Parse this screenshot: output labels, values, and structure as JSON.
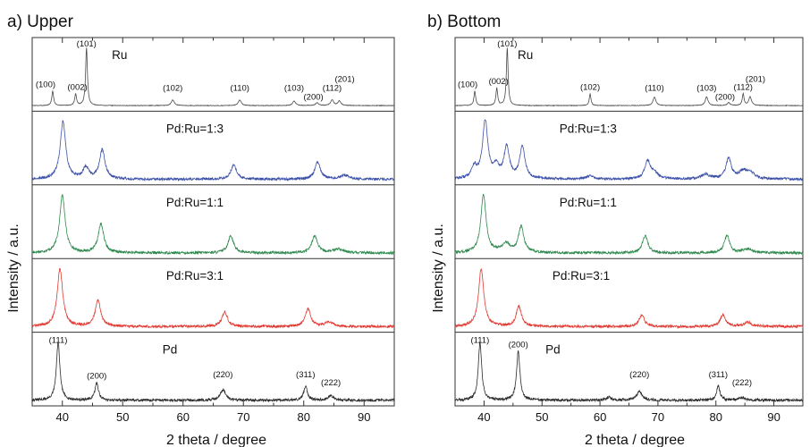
{
  "chart_data": [
    {
      "type": "line",
      "panel_title": "a) Upper",
      "xlabel": "2 theta / degree",
      "ylabel": "Intensity / a.u.",
      "xlim": [
        35,
        95
      ],
      "x_ticks": [
        40,
        50,
        60,
        70,
        80,
        90
      ],
      "x_tick_labels": [
        "40",
        "50",
        "60",
        "70",
        "80",
        "90"
      ],
      "y_ticks_shown": false,
      "series": [
        {
          "name": "Ru",
          "color": "#4a4a4a",
          "peaks": [
            [
              38.4,
              0.25
            ],
            [
              42.2,
              0.2
            ],
            [
              44.0,
              1.0
            ],
            [
              58.3,
              0.1
            ],
            [
              69.4,
              0.1
            ],
            [
              78.4,
              0.08
            ],
            [
              82.2,
              0.05
            ],
            [
              84.7,
              0.1
            ],
            [
              85.9,
              0.08
            ]
          ],
          "peak_labels": [
            {
              "text": "(100)",
              "x": 38.4
            },
            {
              "text": "(002)",
              "x": 42.2
            },
            {
              "text": "(101)",
              "x": 44.0
            },
            {
              "text": "(102)",
              "x": 58.3
            },
            {
              "text": "(110)",
              "x": 69.4
            },
            {
              "text": "(103)",
              "x": 78.4
            },
            {
              "text": "(200)",
              "x": 82.2
            },
            {
              "text": "(112)",
              "x": 84.7
            },
            {
              "text": "(201)",
              "x": 85.9
            }
          ]
        },
        {
          "name": "Pd:Ru=1:3",
          "color": "#3b50a8",
          "peaks": [
            [
              40.1,
              1.0
            ],
            [
              43.9,
              0.2
            ],
            [
              46.6,
              0.5
            ],
            [
              68.4,
              0.25
            ],
            [
              82.3,
              0.3
            ],
            [
              86.8,
              0.07
            ]
          ]
        },
        {
          "name": "Pd:Ru=1:1",
          "color": "#2e8a4e",
          "peaks": [
            [
              40.0,
              1.0
            ],
            [
              46.4,
              0.5
            ],
            [
              67.9,
              0.3
            ],
            [
              81.8,
              0.3
            ],
            [
              85.7,
              0.07
            ]
          ]
        },
        {
          "name": "Pd:Ru=3:1",
          "color": "#e23a32",
          "peaks": [
            [
              39.6,
              1.0
            ],
            [
              45.9,
              0.45
            ],
            [
              66.9,
              0.25
            ],
            [
              80.7,
              0.3
            ],
            [
              84.2,
              0.07
            ]
          ]
        },
        {
          "name": "Pd",
          "color": "#2a2a2a",
          "peaks": [
            [
              39.3,
              1.0
            ],
            [
              45.7,
              0.3
            ],
            [
              66.6,
              0.18
            ],
            [
              80.3,
              0.25
            ],
            [
              84.5,
              0.08
            ]
          ],
          "peak_labels": [
            {
              "text": "(111)",
              "x": 39.3
            },
            {
              "text": "(200)",
              "x": 45.7
            },
            {
              "text": "(220)",
              "x": 66.6
            },
            {
              "text": "(311)",
              "x": 80.3
            },
            {
              "text": "(222)",
              "x": 84.5
            }
          ]
        }
      ]
    },
    {
      "type": "line",
      "panel_title": "b) Bottom",
      "xlabel": "2 theta / degree",
      "ylabel": "Intensity / a.u.",
      "xlim": [
        35,
        95
      ],
      "x_ticks": [
        40,
        50,
        60,
        70,
        80,
        90
      ],
      "x_tick_labels": [
        "40",
        "50",
        "60",
        "70",
        "80",
        "90"
      ],
      "y_ticks_shown": false,
      "series": [
        {
          "name": "Ru",
          "color": "#4a4a4a",
          "peaks": [
            [
              38.4,
              0.25
            ],
            [
              42.2,
              0.3
            ],
            [
              44.0,
              1.0
            ],
            [
              58.3,
              0.2
            ],
            [
              69.4,
              0.15
            ],
            [
              78.4,
              0.15
            ],
            [
              82.2,
              0.05
            ],
            [
              84.7,
              0.2
            ],
            [
              85.9,
              0.15
            ]
          ],
          "peak_labels": [
            {
              "text": "(100)",
              "x": 38.4
            },
            {
              "text": "(002)",
              "x": 42.2
            },
            {
              "text": "(101)",
              "x": 44.0
            },
            {
              "text": "(102)",
              "x": 58.3
            },
            {
              "text": "(110)",
              "x": 69.4
            },
            {
              "text": "(103)",
              "x": 78.4
            },
            {
              "text": "(200)",
              "x": 82.2
            },
            {
              "text": "(112)",
              "x": 84.7
            },
            {
              "text": "(201)",
              "x": 85.9
            }
          ]
        },
        {
          "name": "Pd:Ru=1:3",
          "color": "#3b50a8",
          "peaks": [
            [
              38.3,
              0.2
            ],
            [
              40.2,
              1.0
            ],
            [
              42.1,
              0.2
            ],
            [
              43.9,
              0.55
            ],
            [
              46.6,
              0.55
            ],
            [
              58.2,
              0.05
            ],
            [
              68.2,
              0.3
            ],
            [
              69.3,
              0.1
            ],
            [
              78.2,
              0.08
            ],
            [
              82.2,
              0.35
            ],
            [
              84.7,
              0.12
            ],
            [
              85.9,
              0.1
            ]
          ]
        },
        {
          "name": "Pd:Ru=1:1",
          "color": "#2e8a4e",
          "peaks": [
            [
              39.9,
              1.0
            ],
            [
              43.8,
              0.15
            ],
            [
              46.4,
              0.45
            ],
            [
              67.8,
              0.3
            ],
            [
              81.9,
              0.3
            ],
            [
              85.5,
              0.07
            ]
          ]
        },
        {
          "name": "Pd:Ru=3:1",
          "color": "#e23a32",
          "peaks": [
            [
              39.5,
              1.0
            ],
            [
              46.0,
              0.35
            ],
            [
              67.2,
              0.2
            ],
            [
              81.2,
              0.2
            ],
            [
              85.5,
              0.07
            ]
          ]
        },
        {
          "name": "Pd",
          "color": "#2a2a2a",
          "peaks": [
            [
              39.3,
              1.0
            ],
            [
              45.9,
              0.85
            ],
            [
              61.5,
              0.05
            ],
            [
              66.8,
              0.15
            ],
            [
              80.4,
              0.25
            ],
            [
              84.5,
              0.05
            ]
          ],
          "peak_labels": [
            {
              "text": "(111)",
              "x": 39.3
            },
            {
              "text": "(200)",
              "x": 45.9
            },
            {
              "text": "(220)",
              "x": 66.8
            },
            {
              "text": "(311)",
              "x": 80.4
            },
            {
              "text": "(222)",
              "x": 84.5
            }
          ]
        }
      ]
    }
  ]
}
